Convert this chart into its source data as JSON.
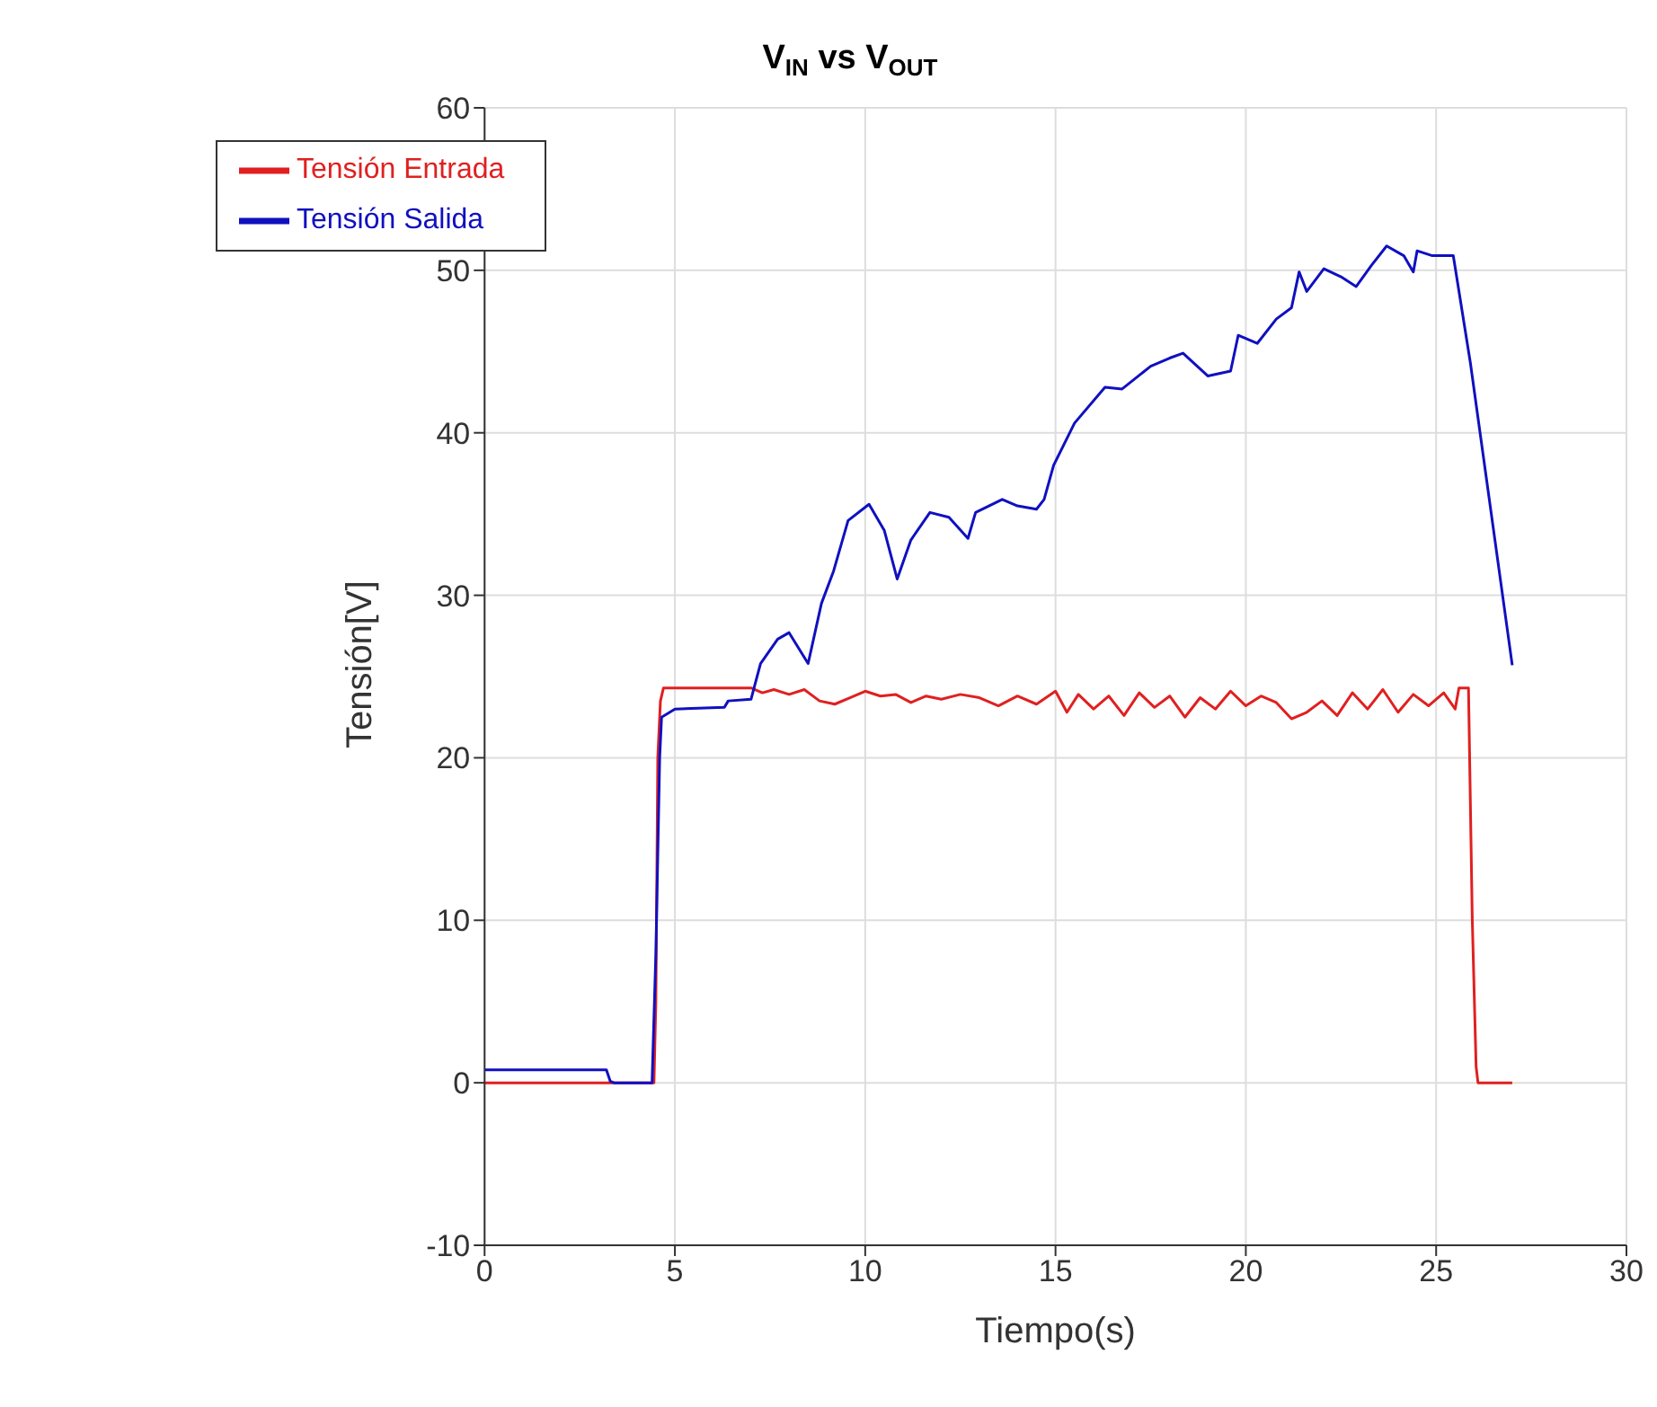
{
  "chart_data": {
    "type": "line",
    "title": "V$_{IN}$ vs V$_{OUT}$",
    "xlabel": "Tiempo(s)",
    "ylabel": "Tensión[V]",
    "xlim": [
      0,
      30
    ],
    "xticks": [
      0,
      5,
      10,
      15,
      20,
      25,
      30
    ],
    "ylim": [
      -10,
      60
    ],
    "yticks": [
      -10,
      0,
      10,
      20,
      30,
      40,
      50,
      60
    ],
    "grid": true,
    "legend": "top left",
    "marker": "none",
    "line_style": "solid",
    "series": [
      {
        "name": "Tensión Entrada",
        "color": "#e02020",
        "x": [
          0,
          3.2,
          3.3,
          4.45,
          4.5,
          4.55,
          4.62,
          4.7,
          5,
          6,
          7,
          7.3,
          7.6,
          8,
          8.4,
          8.8,
          9.2,
          9.6,
          10,
          10.4,
          10.8,
          11.2,
          11.6,
          12,
          12.5,
          13,
          13.5,
          14,
          14.5,
          15,
          15.3,
          15.6,
          16,
          16.4,
          16.8,
          17.2,
          17.6,
          18,
          18.4,
          18.8,
          19.2,
          19.6,
          20,
          20.4,
          20.8,
          21.2,
          21.6,
          22,
          22.4,
          22.8,
          23.2,
          23.6,
          24,
          24.4,
          24.8,
          25.2,
          25.5,
          25.6,
          25.85,
          25.95,
          26.05,
          26.1,
          27
        ],
        "values": [
          0,
          0,
          0,
          0,
          5,
          20,
          23.5,
          24.3,
          24.3,
          24.3,
          24.3,
          24.0,
          24.2,
          23.9,
          24.2,
          23.5,
          23.3,
          23.7,
          24.1,
          23.8,
          23.9,
          23.4,
          23.8,
          23.6,
          23.9,
          23.7,
          23.2,
          23.8,
          23.3,
          24.1,
          22.8,
          23.9,
          23.0,
          23.8,
          22.6,
          24.0,
          23.1,
          23.8,
          22.5,
          23.7,
          23.0,
          24.1,
          23.2,
          23.8,
          23.4,
          22.4,
          22.8,
          23.5,
          22.6,
          24.0,
          23.0,
          24.2,
          22.8,
          23.9,
          23.2,
          24.0,
          23.0,
          24.3,
          24.3,
          10,
          1,
          0,
          0
        ]
      },
      {
        "name": "Tensión Salida",
        "color": "#1010c0",
        "x": [
          0,
          3.2,
          3.3,
          3.4,
          4.4,
          4.5,
          4.6,
          4.65,
          5,
          6.3,
          6.4,
          7,
          7.25,
          7.7,
          8,
          8.5,
          8.85,
          9.17,
          9.55,
          10.1,
          10.5,
          10.84,
          11.2,
          11.7,
          12.2,
          12.7,
          12.9,
          13.6,
          14,
          14.5,
          14.7,
          14.95,
          15.5,
          16.3,
          16.75,
          17.5,
          18,
          18.35,
          19,
          19.6,
          19.8,
          20.3,
          20.8,
          21.2,
          21.4,
          21.6,
          22.05,
          22.5,
          22.9,
          23.3,
          23.7,
          24.15,
          24.4,
          24.5,
          24.9,
          25.45,
          25.9,
          27
        ],
        "values": [
          0.8,
          0.8,
          0.1,
          0,
          0,
          8,
          20,
          22.5,
          23,
          23.1,
          23.5,
          23.6,
          25.8,
          27.3,
          27.7,
          25.8,
          29.5,
          31.5,
          34.6,
          35.6,
          34,
          31,
          33.4,
          35.1,
          34.8,
          33.5,
          35.1,
          35.9,
          35.5,
          35.3,
          35.9,
          38,
          40.6,
          42.8,
          42.7,
          44.1,
          44.6,
          44.9,
          43.5,
          43.8,
          46,
          45.5,
          47,
          47.7,
          49.9,
          48.7,
          50.1,
          49.6,
          49,
          50.3,
          51.5,
          50.9,
          49.9,
          51.2,
          50.9,
          50.9,
          44.3,
          25.7
        ]
      }
    ]
  }
}
